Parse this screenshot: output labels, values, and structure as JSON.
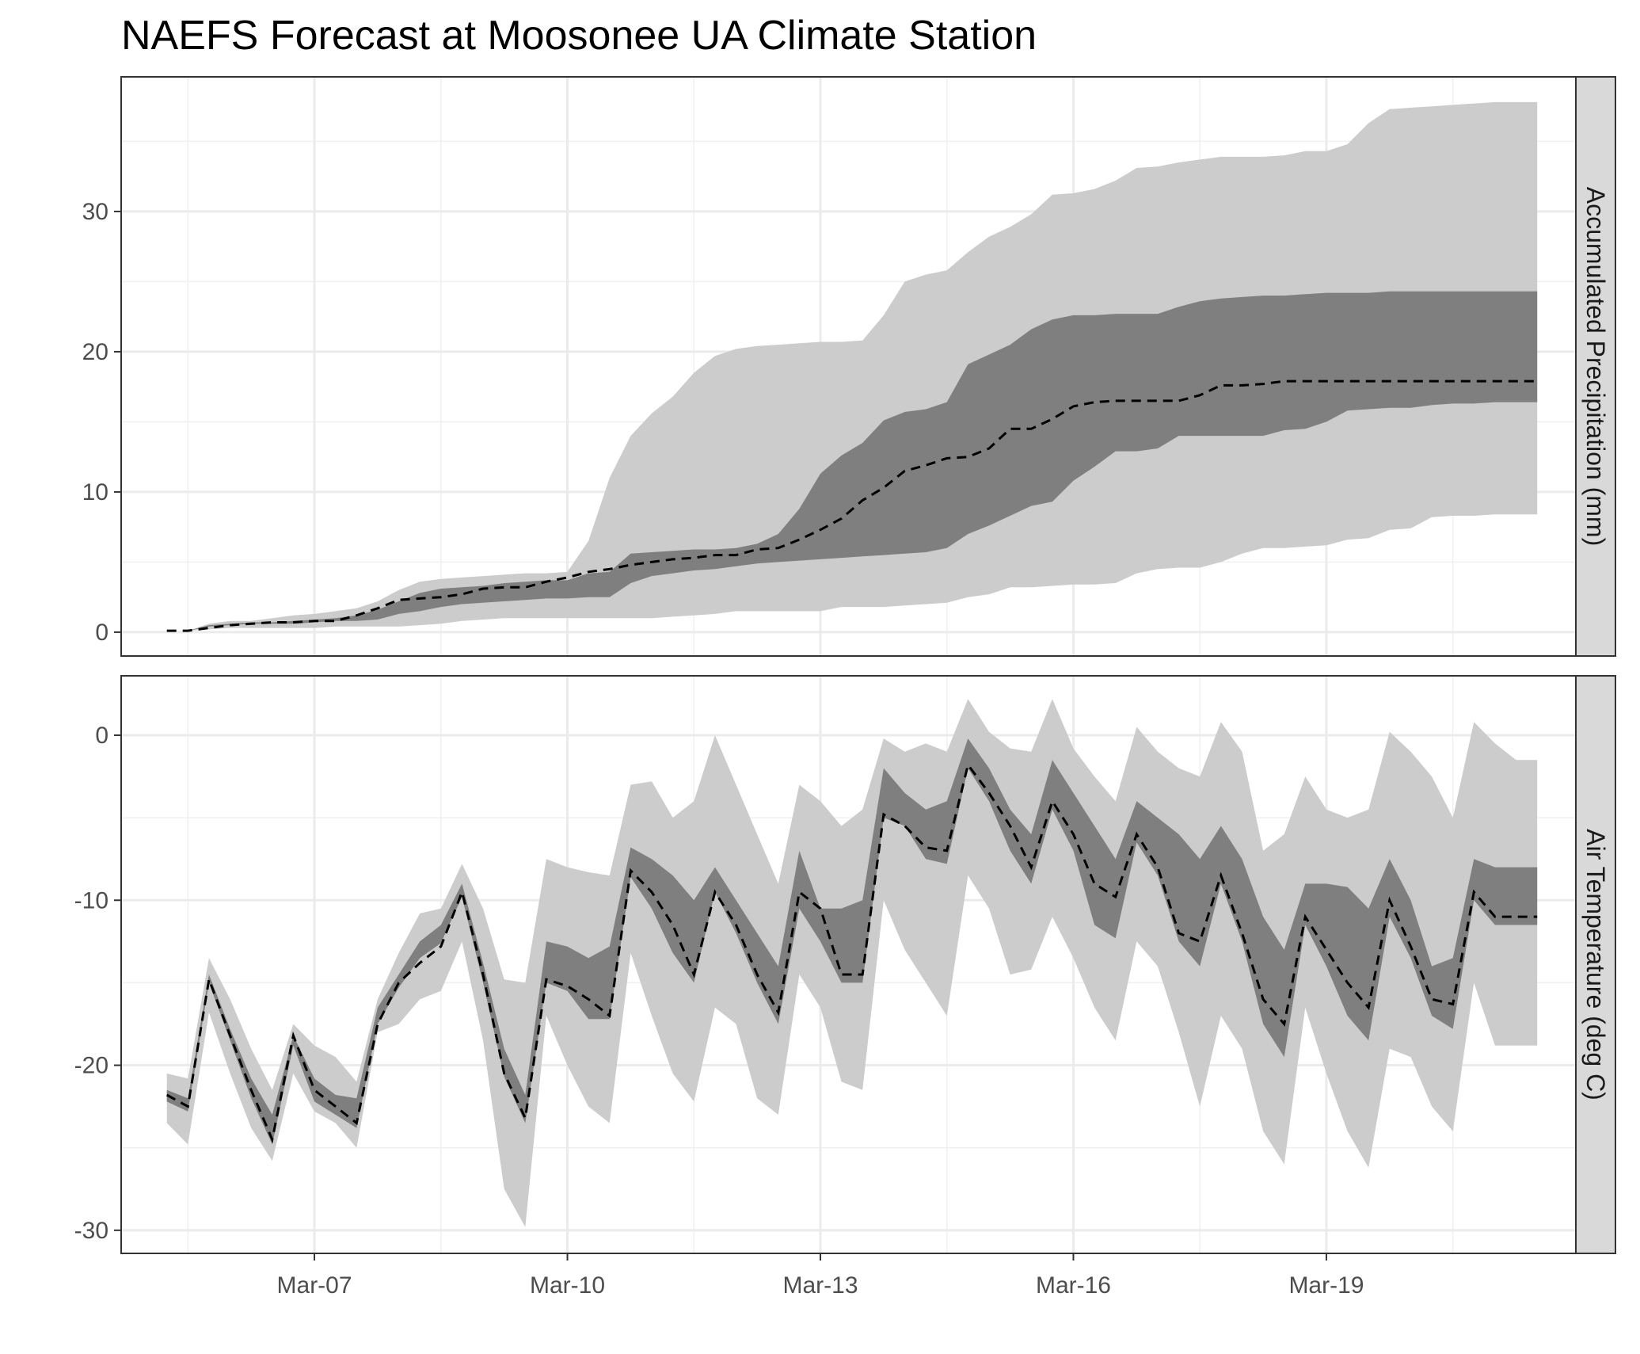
{
  "chart_data": {
    "type": "area",
    "title": "NAEFS Forecast at Moosonee UA Climate Station",
    "x_ticks": [
      {
        "date": "2019-03-07",
        "label": "Mar-07"
      },
      {
        "date": "2019-03-10",
        "label": "Mar-10"
      },
      {
        "date": "2019-03-13",
        "label": "Mar-13"
      },
      {
        "date": "2019-03-16",
        "label": "Mar-16"
      },
      {
        "date": "2019-03-19",
        "label": "Mar-19"
      }
    ],
    "xlim": [
      "2019-03-04T17:00",
      "2019-03-21T23:00"
    ],
    "grid": true,
    "x": [
      "2019-03-05T06:00",
      "2019-03-05T12:00",
      "2019-03-05T18:00",
      "2019-03-06T00:00",
      "2019-03-06T06:00",
      "2019-03-06T12:00",
      "2019-03-06T18:00",
      "2019-03-07T00:00",
      "2019-03-07T06:00",
      "2019-03-07T12:00",
      "2019-03-07T18:00",
      "2019-03-08T00:00",
      "2019-03-08T06:00",
      "2019-03-08T12:00",
      "2019-03-08T18:00",
      "2019-03-09T00:00",
      "2019-03-09T06:00",
      "2019-03-09T12:00",
      "2019-03-09T18:00",
      "2019-03-10T00:00",
      "2019-03-10T06:00",
      "2019-03-10T12:00",
      "2019-03-10T18:00",
      "2019-03-11T00:00",
      "2019-03-11T06:00",
      "2019-03-11T12:00",
      "2019-03-11T18:00",
      "2019-03-12T00:00",
      "2019-03-12T06:00",
      "2019-03-12T12:00",
      "2019-03-12T18:00",
      "2019-03-13T00:00",
      "2019-03-13T06:00",
      "2019-03-13T12:00",
      "2019-03-13T18:00",
      "2019-03-14T00:00",
      "2019-03-14T06:00",
      "2019-03-14T12:00",
      "2019-03-14T18:00",
      "2019-03-15T00:00",
      "2019-03-15T06:00",
      "2019-03-15T12:00",
      "2019-03-15T18:00",
      "2019-03-16T00:00",
      "2019-03-16T06:00",
      "2019-03-16T12:00",
      "2019-03-16T18:00",
      "2019-03-17T00:00",
      "2019-03-17T06:00",
      "2019-03-17T12:00",
      "2019-03-17T18:00",
      "2019-03-18T00:00",
      "2019-03-18T06:00",
      "2019-03-18T12:00",
      "2019-03-18T18:00",
      "2019-03-19T00:00",
      "2019-03-19T06:00",
      "2019-03-19T12:00",
      "2019-03-19T18:00",
      "2019-03-20T00:00",
      "2019-03-20T06:00",
      "2019-03-20T12:00",
      "2019-03-20T18:00",
      "2019-03-21T00:00",
      "2019-03-21T06:00",
      "2019-03-21T12:00"
    ],
    "panels": [
      {
        "strip_label": "Accumulated Precipitation (mm)",
        "ylim": [
          -1.7,
          39.6
        ],
        "y_ticks": [
          0,
          10,
          20,
          30
        ],
        "y_tick_labels": [
          "0",
          "10",
          "20",
          "30"
        ],
        "outer_lower": [
          0.0,
          0.1,
          0.2,
          0.3,
          0.3,
          0.3,
          0.3,
          0.3,
          0.4,
          0.4,
          0.4,
          0.4,
          0.5,
          0.6,
          0.8,
          0.9,
          1.0,
          1.0,
          1.0,
          1.0,
          1.0,
          1.0,
          1.0,
          1.0,
          1.1,
          1.2,
          1.3,
          1.5,
          1.5,
          1.5,
          1.5,
          1.5,
          1.8,
          1.8,
          1.8,
          1.9,
          2.0,
          2.1,
          2.5,
          2.7,
          3.2,
          3.2,
          3.3,
          3.4,
          3.4,
          3.5,
          4.2,
          4.5,
          4.6,
          4.6,
          5.0,
          5.6,
          6.0,
          6.0,
          6.1,
          6.2,
          6.6,
          6.7,
          7.3,
          7.4,
          8.2,
          8.3,
          8.3,
          8.4,
          8.4,
          8.4
        ],
        "outer_upper": [
          0.0,
          0.1,
          0.6,
          0.8,
          0.8,
          1.0,
          1.2,
          1.3,
          1.5,
          1.7,
          2.2,
          3.0,
          3.6,
          3.8,
          3.9,
          4.0,
          4.1,
          4.2,
          4.2,
          4.3,
          6.5,
          11.0,
          14.0,
          15.6,
          16.8,
          18.5,
          19.7,
          20.2,
          20.4,
          20.5,
          20.6,
          20.7,
          20.7,
          20.8,
          22.6,
          25.0,
          25.5,
          25.8,
          27.1,
          28.2,
          28.9,
          29.8,
          31.2,
          31.3,
          31.6,
          32.2,
          33.1,
          33.2,
          33.5,
          33.7,
          33.9,
          33.9,
          33.9,
          34.0,
          34.3,
          34.3,
          34.8,
          36.3,
          37.3,
          37.4,
          37.5,
          37.6,
          37.7,
          37.8,
          37.8,
          37.8
        ],
        "inner_lower": [
          0.0,
          0.1,
          0.4,
          0.5,
          0.6,
          0.6,
          0.6,
          0.7,
          0.8,
          0.8,
          0.9,
          1.3,
          1.5,
          1.8,
          2.0,
          2.1,
          2.2,
          2.3,
          2.4,
          2.4,
          2.5,
          2.5,
          3.5,
          4.0,
          4.2,
          4.4,
          4.5,
          4.7,
          4.9,
          5.0,
          5.1,
          5.2,
          5.3,
          5.4,
          5.5,
          5.6,
          5.7,
          6.0,
          7.0,
          7.6,
          8.3,
          9.0,
          9.3,
          10.8,
          11.8,
          12.9,
          12.9,
          13.1,
          14.0,
          14.0,
          14.0,
          14.0,
          14.0,
          14.4,
          14.5,
          15.0,
          15.8,
          15.9,
          16.0,
          16.0,
          16.2,
          16.3,
          16.3,
          16.4,
          16.4,
          16.4
        ],
        "inner_upper": [
          0.0,
          0.1,
          0.5,
          0.6,
          0.7,
          0.7,
          0.8,
          0.9,
          1.0,
          1.2,
          1.6,
          2.2,
          2.8,
          3.1,
          3.2,
          3.3,
          3.5,
          3.6,
          3.7,
          3.7,
          4.2,
          4.3,
          5.6,
          5.7,
          5.8,
          5.9,
          5.9,
          6.0,
          6.3,
          7.0,
          8.8,
          11.3,
          12.6,
          13.5,
          15.1,
          15.7,
          15.9,
          16.4,
          19.1,
          19.8,
          20.5,
          21.6,
          22.3,
          22.6,
          22.6,
          22.7,
          22.7,
          22.7,
          23.2,
          23.6,
          23.8,
          23.9,
          24.0,
          24.0,
          24.1,
          24.2,
          24.2,
          24.2,
          24.3,
          24.3,
          24.3,
          24.3,
          24.3,
          24.3,
          24.3,
          24.3
        ],
        "median": [
          0.1,
          0.1,
          0.3,
          0.5,
          0.6,
          0.7,
          0.7,
          0.8,
          0.8,
          1.2,
          1.7,
          2.3,
          2.4,
          2.5,
          2.7,
          3.1,
          3.2,
          3.2,
          3.6,
          3.9,
          4.3,
          4.5,
          4.8,
          5.0,
          5.2,
          5.3,
          5.5,
          5.5,
          5.9,
          6.0,
          6.6,
          7.3,
          8.1,
          9.4,
          10.3,
          11.5,
          11.9,
          12.4,
          12.5,
          13.1,
          14.5,
          14.5,
          15.2,
          16.1,
          16.4,
          16.5,
          16.5,
          16.5,
          16.5,
          16.9,
          17.6,
          17.6,
          17.7,
          17.9,
          17.9,
          17.9,
          17.9,
          17.9,
          17.9,
          17.9,
          17.9,
          17.9,
          17.9,
          17.9,
          17.9,
          17.9
        ]
      },
      {
        "strip_label": "Air Temperature (deg C)",
        "ylim": [
          -31.4,
          3.6
        ],
        "y_ticks": [
          0,
          -10,
          -20,
          -30
        ],
        "y_tick_labels": [
          "0",
          "-10",
          "-20",
          "-30"
        ],
        "outer_lower": [
          -23.5,
          -24.8,
          -16.8,
          -20.5,
          -23.8,
          -25.8,
          -20.5,
          -22.8,
          -23.5,
          -25.0,
          -18.0,
          -17.5,
          -16.0,
          -15.5,
          -12.5,
          -18.5,
          -27.5,
          -29.8,
          -17.0,
          -20.0,
          -22.5,
          -23.5,
          -13.2,
          -17.0,
          -20.5,
          -22.2,
          -16.5,
          -17.5,
          -22.0,
          -23.0,
          -14.5,
          -16.5,
          -21.0,
          -21.5,
          -10.0,
          -13.0,
          -15.0,
          -17.0,
          -8.5,
          -10.5,
          -14.5,
          -14.2,
          -11.0,
          -13.5,
          -16.5,
          -18.5,
          -12.5,
          -14.0,
          -18.0,
          -22.5,
          -17.0,
          -19.0,
          -24.0,
          -26.0,
          -16.5,
          -20.5,
          -24.0,
          -26.2,
          -19.0,
          -19.5,
          -22.5,
          -24.0,
          -15.0,
          -18.8,
          -18.8,
          -18.8
        ],
        "outer_upper": [
          -20.5,
          -20.8,
          -13.5,
          -16.0,
          -19.0,
          -21.5,
          -17.5,
          -18.8,
          -19.5,
          -21.0,
          -16.0,
          -13.2,
          -10.8,
          -10.5,
          -7.8,
          -10.5,
          -14.8,
          -15.0,
          -7.5,
          -8.0,
          -8.3,
          -8.5,
          -3.0,
          -2.8,
          -5.0,
          -4.0,
          0.0,
          -3.0,
          -6.0,
          -9.0,
          -3.0,
          -4.0,
          -5.5,
          -4.5,
          -0.2,
          -1.0,
          -0.5,
          -1.0,
          2.2,
          0.2,
          -0.8,
          -1.0,
          2.2,
          -0.8,
          -2.5,
          -4.0,
          0.5,
          -1.0,
          -2.0,
          -2.5,
          0.8,
          -1.0,
          -7.0,
          -6.0,
          -2.5,
          -4.5,
          -5.0,
          -4.5,
          0.2,
          -1.0,
          -2.5,
          -5.0,
          0.8,
          -0.5,
          -1.5,
          -1.5
        ],
        "inner_lower": [
          -22.2,
          -22.8,
          -15.0,
          -18.5,
          -22.0,
          -24.8,
          -18.8,
          -22.2,
          -23.0,
          -23.8,
          -17.5,
          -15.3,
          -13.5,
          -12.6,
          -9.8,
          -15.0,
          -20.7,
          -23.5,
          -15.0,
          -15.5,
          -17.2,
          -17.2,
          -8.6,
          -10.5,
          -13.2,
          -15.0,
          -9.5,
          -12.0,
          -15.0,
          -17.5,
          -10.5,
          -12.5,
          -15.0,
          -15.0,
          -5.0,
          -5.5,
          -7.5,
          -7.8,
          -2.0,
          -4.0,
          -7.0,
          -9.0,
          -4.5,
          -7.0,
          -11.5,
          -12.3,
          -6.5,
          -8.5,
          -12.5,
          -14.0,
          -9.0,
          -12.5,
          -17.5,
          -19.5,
          -11.5,
          -14.0,
          -17.0,
          -18.5,
          -11.0,
          -13.5,
          -17.0,
          -17.8,
          -10.0,
          -11.5,
          -11.5,
          -11.5
        ],
        "inner_upper": [
          -21.5,
          -22.0,
          -14.5,
          -17.8,
          -20.8,
          -23.0,
          -18.2,
          -20.8,
          -21.8,
          -22.0,
          -16.5,
          -14.5,
          -12.5,
          -11.5,
          -9.0,
          -13.8,
          -19.0,
          -21.8,
          -12.5,
          -12.8,
          -13.5,
          -12.8,
          -6.8,
          -7.5,
          -8.5,
          -10.0,
          -8.0,
          -10.0,
          -12.0,
          -14.0,
          -7.0,
          -10.5,
          -10.5,
          -10.0,
          -2.0,
          -3.5,
          -4.5,
          -4.0,
          -0.2,
          -2.0,
          -4.5,
          -6.0,
          -1.5,
          -3.5,
          -5.5,
          -7.5,
          -4.0,
          -5.0,
          -6.0,
          -7.5,
          -5.5,
          -7.5,
          -11.0,
          -13.0,
          -9.0,
          -9.0,
          -9.2,
          -10.5,
          -7.5,
          -10.0,
          -14.0,
          -13.5,
          -7.5,
          -8.0,
          -8.0,
          -8.0
        ],
        "median": [
          -21.8,
          -22.5,
          -14.8,
          -18.2,
          -21.5,
          -24.5,
          -18.2,
          -21.5,
          -22.5,
          -23.5,
          -17.5,
          -15.0,
          -13.8,
          -12.8,
          -9.5,
          -14.5,
          -20.5,
          -23.2,
          -14.8,
          -15.2,
          -16.0,
          -17.0,
          -8.2,
          -9.5,
          -11.5,
          -14.5,
          -9.5,
          -11.5,
          -14.5,
          -16.8,
          -9.5,
          -10.5,
          -14.5,
          -14.5,
          -4.8,
          -5.5,
          -6.8,
          -7.0,
          -1.8,
          -3.5,
          -5.5,
          -8.0,
          -4.0,
          -6.0,
          -9.0,
          -9.8,
          -6.0,
          -8.0,
          -12.0,
          -12.5,
          -8.5,
          -12.0,
          -16.0,
          -17.5,
          -11.0,
          -13.0,
          -15.0,
          -16.5,
          -10.0,
          -12.8,
          -16.0,
          -16.3,
          -9.5,
          -11.0,
          -11.0,
          -11.0
        ]
      }
    ]
  }
}
